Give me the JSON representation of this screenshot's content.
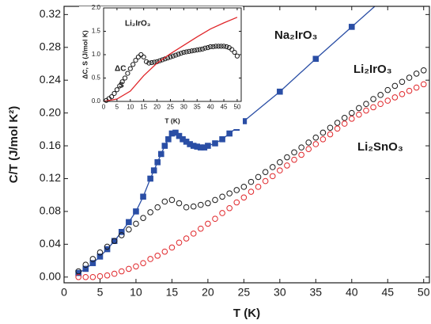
{
  "chart_data": [
    {
      "type": "scatter",
      "xlabel": "T (K)",
      "ylabel": "C/T (J/mol K²)",
      "xlim": [
        0,
        50.8
      ],
      "ylim": [
        -0.007,
        0.33
      ],
      "xticks": [
        0,
        5,
        10,
        15,
        20,
        25,
        30,
        35,
        40,
        45,
        50
      ],
      "yticks": [
        {
          "value": 0,
          "label": "0.00"
        },
        0.04,
        0.08,
        0.12,
        0.16,
        {
          "value": 0.2,
          "label": "0.20"
        },
        0.24,
        0.28,
        0.32
      ],
      "grid": false,
      "series": [
        {
          "name": "Na₂IrO₃",
          "color": "#2a4ea5",
          "marker": "square",
          "filled": true,
          "line": true,
          "x": [
            2,
            3,
            4,
            5,
            6,
            7,
            8,
            9,
            10,
            11,
            12,
            12.5,
            13,
            13.5,
            14,
            14.5,
            15,
            15.5,
            16,
            16.5,
            17,
            17.5,
            18,
            18.5,
            19,
            19.5,
            20,
            21,
            22,
            23,
            24,
            25,
            30,
            35,
            40,
            45
          ],
          "values": [
            0.005,
            0.01,
            0.017,
            0.025,
            0.034,
            0.044,
            0.055,
            0.067,
            0.08,
            0.098,
            0.12,
            0.13,
            0.14,
            0.15,
            0.16,
            0.168,
            0.175,
            0.176,
            0.172,
            0.168,
            0.165,
            0.162,
            0.16,
            0.159,
            0.158,
            0.158,
            0.16,
            0.163,
            0.168,
            0.175,
            0.182,
            0.19,
            0.226,
            0.266,
            0.305,
            0.344
          ]
        },
        {
          "name": "Li₂IrO₃",
          "color": "#1a1a1a",
          "marker": "circle",
          "filled": false,
          "line": false,
          "x": [
            2,
            3,
            4,
            5,
            6,
            7,
            8,
            9,
            10,
            11,
            12,
            13,
            14,
            15,
            16,
            17,
            18,
            19,
            20,
            21,
            22,
            23,
            24,
            25,
            26,
            27,
            28,
            29,
            30,
            31,
            32,
            33,
            34,
            35,
            36,
            37,
            38,
            39,
            40,
            41,
            42,
            43,
            44,
            45,
            46,
            47,
            48,
            49,
            50
          ],
          "values": [
            0.007,
            0.015,
            0.022,
            0.03,
            0.037,
            0.044,
            0.051,
            0.058,
            0.065,
            0.072,
            0.079,
            0.085,
            0.092,
            0.094,
            0.09,
            0.085,
            0.086,
            0.088,
            0.09,
            0.094,
            0.098,
            0.102,
            0.106,
            0.11,
            0.116,
            0.122,
            0.128,
            0.134,
            0.14,
            0.146,
            0.152,
            0.158,
            0.164,
            0.17,
            0.176,
            0.182,
            0.188,
            0.194,
            0.2,
            0.206,
            0.211,
            0.217,
            0.222,
            0.228,
            0.233,
            0.238,
            0.243,
            0.248,
            0.252
          ]
        },
        {
          "name": "Li₂SnO₃",
          "color": "#e0262a",
          "marker": "circle",
          "filled": false,
          "line": false,
          "x": [
            2,
            3,
            4,
            5,
            6,
            7,
            8,
            9,
            10,
            11,
            12,
            13,
            14,
            15,
            16,
            17,
            18,
            19,
            20,
            21,
            22,
            23,
            24,
            25,
            26,
            27,
            28,
            29,
            30,
            31,
            32,
            33,
            34,
            35,
            36,
            37,
            38,
            39,
            40,
            41,
            42,
            43,
            44,
            45,
            46,
            47,
            48,
            49,
            50
          ],
          "values": [
            0,
            0,
            0,
            0.001,
            0.002,
            0.004,
            0.007,
            0.01,
            0.013,
            0.017,
            0.022,
            0.026,
            0.031,
            0.036,
            0.042,
            0.047,
            0.053,
            0.059,
            0.065,
            0.071,
            0.078,
            0.084,
            0.091,
            0.097,
            0.104,
            0.11,
            0.117,
            0.123,
            0.13,
            0.136,
            0.143,
            0.149,
            0.156,
            0.162,
            0.168,
            0.174,
            0.181,
            0.187,
            0.193,
            0.198,
            0.203,
            0.207,
            0.211,
            0.215,
            0.219,
            0.223,
            0.227,
            0.231,
            0.235
          ]
        }
      ]
    },
    {
      "type": "scatter",
      "title": "Li₂IrO₃",
      "xlabel": "T (K)",
      "ylabel": "ΔC, S (J/mol K)",
      "xlim": [
        0,
        51.5
      ],
      "ylim": [
        0,
        2.0
      ],
      "xticks": [
        0,
        5,
        10,
        15,
        20,
        25,
        30,
        35,
        40,
        45,
        50
      ],
      "yticks": [
        {
          "value": 0,
          "label": "0.0"
        },
        0.5,
        {
          "value": 1,
          "label": "1.0"
        },
        1.5,
        {
          "value": 2,
          "label": "2.0"
        }
      ],
      "series": [
        {
          "name": "ΔC",
          "color": "#1a1a1a",
          "marker": "circle",
          "filled": false,
          "line": false,
          "x": [
            1,
            2,
            3,
            4,
            5,
            6,
            7,
            8,
            9,
            10,
            11,
            12,
            13,
            14,
            15,
            16,
            17,
            18,
            19,
            20,
            21,
            22,
            23,
            24,
            25,
            26,
            27,
            28,
            29,
            30,
            31,
            32,
            33,
            34,
            35,
            36,
            37,
            38,
            39,
            40,
            41,
            42,
            43,
            44,
            45,
            46,
            47,
            48,
            49,
            50
          ],
          "values": [
            0.02,
            0.06,
            0.1,
            0.17,
            0.25,
            0.33,
            0.42,
            0.5,
            0.6,
            0.7,
            0.79,
            0.88,
            0.95,
            1.0,
            0.95,
            0.85,
            0.82,
            0.83,
            0.84,
            0.85,
            0.87,
            0.89,
            0.91,
            0.93,
            0.95,
            0.97,
            0.99,
            1.01,
            1.03,
            1.05,
            1.06,
            1.07,
            1.08,
            1.09,
            1.1,
            1.11,
            1.12,
            1.14,
            1.15,
            1.17,
            1.17,
            1.18,
            1.18,
            1.18,
            1.18,
            1.17,
            1.15,
            1.11,
            1.05,
            0.97
          ]
        },
        {
          "name": "S",
          "color": "#e0262a",
          "marker": "none",
          "filled": false,
          "line": true,
          "x": [
            0,
            5,
            10,
            15,
            20,
            25,
            30,
            35,
            40,
            45,
            50
          ],
          "values": [
            0,
            0.05,
            0.22,
            0.55,
            0.82,
            1.02,
            1.2,
            1.38,
            1.55,
            1.68,
            1.8
          ]
        }
      ]
    }
  ]
}
